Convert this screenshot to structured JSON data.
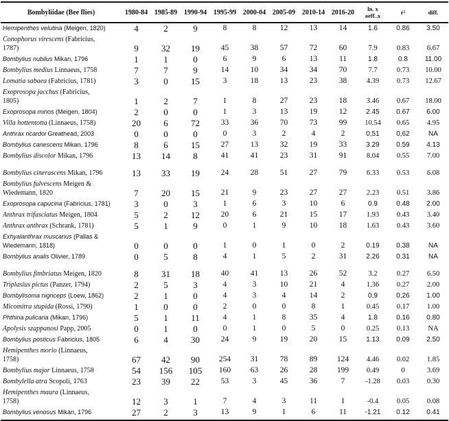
{
  "table": {
    "header": {
      "species_col": "Bombyliidae (Bee flies)",
      "period_cols": [
        "1980-84",
        "1985-89",
        "1990-94",
        "1995-99",
        "2000-04",
        "2005-09",
        "2010-14",
        "2016-20"
      ],
      "stat_cols": [
        "ln. x\noeff..x",
        "r²",
        "diff."
      ]
    },
    "rows": [
      {
        "name": "Hemipenthes velutina",
        "author": "(Meigen, 1820)",
        "variant": "alt",
        "counts": [
          4,
          2,
          9,
          8,
          8,
          12,
          13,
          14
        ],
        "stats": [
          "1.6",
          "0.86",
          "3.50"
        ]
      },
      {
        "name": "Conophorus virescens",
        "author": "(Fabricius,\n1787)",
        "counts": [
          9,
          32,
          19,
          45,
          38,
          57,
          72,
          60
        ],
        "stats": [
          "7.9",
          "0.83",
          "6.67"
        ]
      },
      {
        "name": "Bombylius nubilus",
        "author": "Mikan, 1796",
        "variant": "alt",
        "counts": [
          1,
          1,
          0,
          6,
          9,
          6,
          13,
          11
        ],
        "stats": [
          "1.8",
          "0.8",
          "11.00"
        ]
      },
      {
        "name": "Bombylius medius",
        "author": "Linnaeus, 1758",
        "counts": [
          7,
          7,
          9,
          14,
          10,
          34,
          34,
          70
        ],
        "stats": [
          "7.7",
          "0.73",
          "10.00"
        ]
      },
      {
        "name": "Lomatia sabaea",
        "author": "(Fabricius, 1781)",
        "counts": [
          3,
          0,
          15,
          3,
          18,
          13,
          23,
          38
        ],
        "stats": [
          "4.39",
          "0.73",
          "12.67"
        ]
      },
      {
        "name": "Exoprosopa jacchus",
        "author": "(Fabricius,\n1805)",
        "counts": [
          1,
          2,
          7,
          1,
          8,
          27,
          23,
          18
        ],
        "stats": [
          "3.46",
          "0.67",
          "18.00"
        ]
      },
      {
        "name": "Exoprosopa minos",
        "author": "(Meigen, 1804)",
        "variant": "alt",
        "counts": [
          2,
          0,
          0,
          1,
          3,
          13,
          19,
          12
        ],
        "stats": [
          "2.45",
          "0.67",
          "6.00"
        ]
      },
      {
        "name": "Villa hottentotta",
        "author": "(Linnaeus, 1758)",
        "counts": [
          20,
          6,
          72,
          33,
          36,
          70,
          73,
          99
        ],
        "stats": [
          "10.54",
          "0.65",
          "4.95"
        ]
      },
      {
        "name": "Anthrax ricardoi",
        "author": "Greathead, 2003",
        "variant": "alt",
        "counts": [
          0,
          0,
          0,
          0,
          3,
          2,
          4,
          2
        ],
        "stats": [
          "0,51",
          "0,62",
          "NA"
        ]
      },
      {
        "name": "Bombylius canescens",
        "author": "Mikan, 1796",
        "variant": "alt",
        "counts": [
          8,
          6,
          15,
          27,
          13,
          32,
          19,
          33
        ],
        "stats": [
          "3.29",
          "0.59",
          "4.13"
        ]
      },
      {
        "name": "Bombylius discolor",
        "author": "Mikan, 1796",
        "counts": [
          13,
          14,
          8,
          41,
          41,
          23,
          31,
          91
        ],
        "stats": [
          "8.04",
          "0.55",
          "7.00"
        ]
      },
      {
        "name": "Bombylius cinerascens",
        "author": "Mikan, 1796",
        "gap": true,
        "counts": [
          13,
          33,
          19,
          24,
          28,
          51,
          27,
          79
        ],
        "stats": [
          "6.33",
          "0.53",
          "6.08"
        ]
      },
      {
        "name": "Bombylius fulvescens",
        "author": "Meigen &\nWiedemann, 1820",
        "counts": [
          7,
          20,
          15,
          21,
          9,
          23,
          27,
          27
        ],
        "stats": [
          "2.23",
          "0.51",
          "3.86"
        ]
      },
      {
        "name": "Exoprosopa capucina",
        "author": "(Fabricius, 1781)",
        "variant": "alt",
        "counts": [
          3,
          0,
          3,
          1,
          6,
          3,
          10,
          6
        ],
        "stats": [
          "0.9",
          "0.48",
          "2.00"
        ]
      },
      {
        "name": "Anthrax trifasciatus",
        "author": "Meigen, 1804",
        "counts": [
          5,
          2,
          12,
          20,
          6,
          21,
          15,
          17
        ],
        "stats": [
          "1.93",
          "0.43",
          "3.40"
        ]
      },
      {
        "name": "Anthrax anthrax",
        "author": "(Schrank, 1781)",
        "counts": [
          5,
          1,
          9,
          0,
          1,
          9,
          10,
          18
        ],
        "stats": [
          "1.63",
          "0.43",
          "3.60"
        ]
      },
      {
        "name": "Exhyalanthrax muscarius",
        "author": "(Pallas &\nWiedemann, 1818)",
        "variant": "alt",
        "counts": [
          0,
          0,
          0,
          1,
          0,
          1,
          0,
          2
        ],
        "stats": [
          "0.19",
          "0.38",
          "NA"
        ]
      },
      {
        "name": "Bombylius analis",
        "author": "Olivier, 1789",
        "variant": "alt",
        "counts": [
          0,
          5,
          8,
          4,
          1,
          5,
          2,
          31
        ],
        "stats": [
          "2.26",
          "0.31",
          "NA"
        ]
      },
      {
        "name": "Bombylius fimbriatus",
        "author": "Meigen, 1820",
        "gap": true,
        "counts": [
          8,
          31,
          18,
          40,
          41,
          13,
          26,
          52
        ],
        "stats": [
          "3.2",
          "0.27",
          "6.50"
        ]
      },
      {
        "name": "Triplasius pictus",
        "author": "(Panzer, 1794)",
        "counts": [
          2,
          5,
          3,
          4,
          3,
          10,
          21,
          4
        ],
        "stats": [
          "1.36",
          "0.27",
          "2.00"
        ]
      },
      {
        "name": "Bombylisoma nigriceps",
        "author": "(Loew, 1862)",
        "variant": "alt",
        "counts": [
          2,
          1,
          0,
          4,
          3,
          4,
          14,
          2
        ],
        "stats": [
          "0,9",
          "0,26",
          "1.00"
        ]
      },
      {
        "name": "Micomitra stupida",
        "author": "(Rossi, 1790)",
        "counts": [
          1,
          0,
          0,
          2,
          0,
          0,
          8,
          1
        ],
        "stats": [
          "0.45",
          "0.17",
          "1.00"
        ]
      },
      {
        "name": "Phthiria pulicaria",
        "author": "(Mikan, 1796)",
        "variant": "alt",
        "counts": [
          5,
          1,
          11,
          4,
          1,
          8,
          35,
          4
        ],
        "stats": [
          "1.8",
          "0.16",
          "0.80"
        ]
      },
      {
        "name": "Apolysis szappanosi",
        "author": "Papp, 2005",
        "counts": [
          0,
          1,
          0,
          0,
          1,
          0,
          5,
          0
        ],
        "stats": [
          "0.25",
          "0.13",
          "NA"
        ]
      },
      {
        "name": "Bombylius posticus",
        "author": "Fabricius, 1805",
        "variant": "alt",
        "counts": [
          6,
          4,
          30,
          24,
          9,
          19,
          20,
          15
        ],
        "stats": [
          "1.13",
          "0.09",
          "2.50"
        ]
      },
      {
        "name": "Hemipenthes morio",
        "author": "(Linnaeus,\n1758)",
        "counts": [
          67,
          42,
          90,
          254,
          31,
          78,
          89,
          124
        ],
        "stats": [
          "4.46",
          "0.02",
          "1.85"
        ]
      },
      {
        "name": "Bombylius major",
        "author": "Linnaeus, 1758",
        "counts": [
          54,
          156,
          105,
          160,
          63,
          26,
          28,
          199
        ],
        "stats": [
          "0.49",
          "0",
          "3.69"
        ]
      },
      {
        "name": "Bombylella atra",
        "author": "Scopoli, 1763",
        "counts": [
          23,
          39,
          22,
          53,
          3,
          45,
          36,
          7
        ],
        "stats": [
          "-1.28",
          "0.03",
          "0.30"
        ]
      },
      {
        "name": "Hemipenthes maura",
        "author": "(Linnaeus,\n1758)",
        "counts": [
          12,
          3,
          1,
          7,
          4,
          3,
          11,
          1
        ],
        "stats": [
          "-0.4",
          "0.05",
          "0.08"
        ]
      },
      {
        "name": "Bombylius venosus",
        "author": "Mikan, 1796",
        "variant": "alt",
        "counts": [
          27,
          2,
          3,
          13,
          9,
          1,
          6,
          11
        ],
        "stats": [
          "-1.21",
          "0.12",
          "0.41"
        ]
      }
    ]
  }
}
